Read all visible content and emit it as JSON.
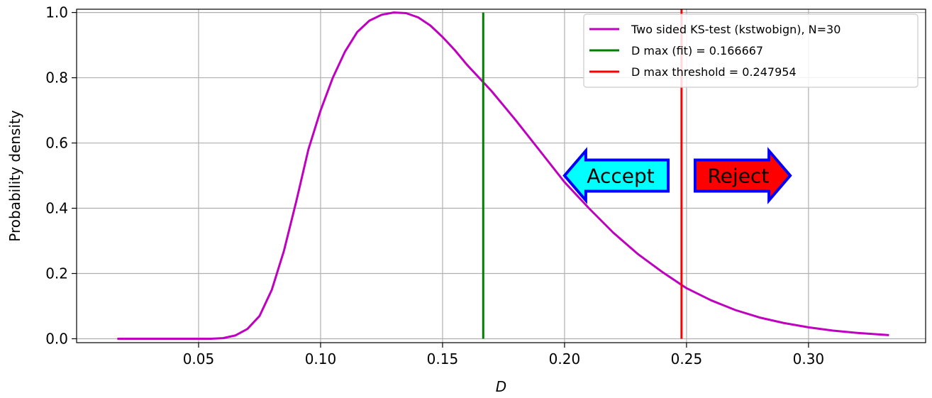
{
  "chart_data": {
    "type": "line",
    "xlabel": "D",
    "ylabel": "Probability density",
    "xlim": [
      0.0,
      0.348
    ],
    "ylim": [
      -0.012,
      1.01
    ],
    "xticks": [
      0.05,
      0.1,
      0.15,
      0.2,
      0.25,
      0.3
    ],
    "xtick_labels": [
      "0.05",
      "0.10",
      "0.15",
      "0.20",
      "0.25",
      "0.30"
    ],
    "yticks": [
      0.0,
      0.2,
      0.4,
      0.6,
      0.8,
      1.0
    ],
    "ytick_labels": [
      "0.0",
      "0.2",
      "0.4",
      "0.6",
      "0.8",
      "1.0"
    ],
    "grid": true,
    "legend_position": "top-right",
    "series": [
      {
        "name": "Two sided KS-test (kstwobign), N=30",
        "color": "#bf00bf",
        "kind": "curve",
        "x": [
          0.0167,
          0.03,
          0.05,
          0.055,
          0.06,
          0.065,
          0.07,
          0.075,
          0.08,
          0.085,
          0.09,
          0.095,
          0.1,
          0.105,
          0.11,
          0.115,
          0.12,
          0.125,
          0.13,
          0.135,
          0.14,
          0.145,
          0.15,
          0.155,
          0.16,
          0.165,
          0.17,
          0.175,
          0.18,
          0.19,
          0.2,
          0.21,
          0.22,
          0.23,
          0.24,
          0.25,
          0.26,
          0.27,
          0.28,
          0.29,
          0.3,
          0.31,
          0.32,
          0.333
        ],
        "y": [
          0.0,
          0.0,
          0.0,
          0.0,
          0.002,
          0.01,
          0.03,
          0.07,
          0.15,
          0.27,
          0.42,
          0.58,
          0.7,
          0.8,
          0.88,
          0.94,
          0.975,
          0.993,
          1.0,
          0.998,
          0.985,
          0.96,
          0.925,
          0.885,
          0.84,
          0.8,
          0.76,
          0.715,
          0.67,
          0.575,
          0.48,
          0.4,
          0.325,
          0.26,
          0.205,
          0.155,
          0.118,
          0.088,
          0.065,
          0.048,
          0.035,
          0.025,
          0.018,
          0.011
        ]
      },
      {
        "name": "D max (fit) = 0.166667",
        "color": "#008000",
        "kind": "vline",
        "x": 0.166667,
        "y_range": [
          0.0,
          1.0
        ]
      },
      {
        "name": "D max threshold = 0.247954",
        "color": "#ff0000",
        "kind": "vline",
        "x": 0.247954,
        "y_range": [
          0.0,
          1.01
        ]
      }
    ],
    "annotations": [
      {
        "text": "Accept",
        "direction": "left",
        "x_start": 0.2425,
        "x_end": 0.2,
        "y": 0.5,
        "fill": "#00ffff",
        "edge": "#0000ff"
      },
      {
        "text": "Reject",
        "direction": "right",
        "x_start": 0.2535,
        "x_end": 0.2925,
        "y": 0.5,
        "fill": "#ff0000",
        "edge": "#0000ff"
      }
    ]
  }
}
